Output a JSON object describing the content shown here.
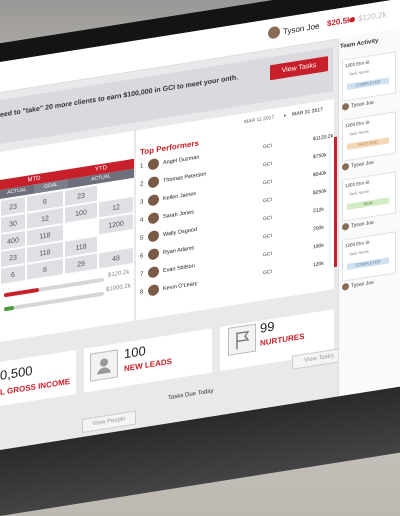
{
  "header": {
    "user_name": "Tyson Joe",
    "gci_value": "$20.5k",
    "gci_goal": "$120.2k"
  },
  "banner": {
    "text": "eed to \"take\" 20 more clients to earn $100,000 in GCI to meet your onth.",
    "button": "View Tasks"
  },
  "table": {
    "mtd": "MTD",
    "ytd": "YTD",
    "subheads": [
      "ACTUAL",
      "GOAL",
      "ACTUAL"
    ],
    "rows": [
      [
        "23",
        "6",
        "23"
      ],
      [
        "30",
        "12",
        "100",
        "12"
      ],
      [
        "400",
        "118",
        "1200"
      ],
      [
        "23",
        "118",
        "118"
      ],
      [
        "6",
        "8",
        "29",
        "48"
      ]
    ]
  },
  "progress": {
    "value1": "$120.2k",
    "value2": "$1000.2k",
    "fill1": 0.35,
    "fill2": 0.1
  },
  "performers": {
    "title": "Top Performers",
    "date_start": "MAR 11 2017",
    "date_end": "MAR 31 2017",
    "rows": [
      {
        "rank": "1",
        "name": "Angel Guzman",
        "metric": "GCI",
        "value": "$1120.2k"
      },
      {
        "rank": "2",
        "name": "Thomas Peterson",
        "metric": "GCI",
        "value": "$750k"
      },
      {
        "rank": "3",
        "name": "Kellen James",
        "metric": "GCI",
        "value": "$540k"
      },
      {
        "rank": "4",
        "name": "Sarah Jones",
        "metric": "GCI",
        "value": "$250k"
      },
      {
        "rank": "5",
        "name": "Wally Osgood",
        "metric": "GCI",
        "value": "212k"
      },
      {
        "rank": "6",
        "name": "Ryan Adams",
        "metric": "GCI",
        "value": "200k"
      },
      {
        "rank": "7",
        "name": "Evan Stillson",
        "metric": "GCI",
        "value": "190k"
      },
      {
        "rank": "8",
        "name": "Kevin O'Leary",
        "metric": "GCI",
        "value": "120k"
      }
    ]
  },
  "cards": {
    "income_num": "0,500",
    "income_label": "L GROSS INCOME",
    "leads_num": "100",
    "leads_label": "NEW LEADS",
    "nurtures_num": "99",
    "nurtures_label": "NURTURES",
    "view_people": "View People",
    "tasks_due": "Tasks Due Today",
    "view_tasks": "View Tasks"
  },
  "sidebar": {
    "title": "Team Activity",
    "tasks": [
      {
        "addr": "1203 Elm St.",
        "name": "Task Name",
        "badge": "COMPLETED",
        "badge_color": "#cfe0ee",
        "person": "Tyson Joe"
      },
      {
        "addr": "1203 Elm St.",
        "name": "Task Name",
        "badge": "PAST DUE",
        "badge_color": "#f4d7b8",
        "person": "Tyson Joe"
      },
      {
        "addr": "1203 Elm St.",
        "name": "Task Name",
        "badge": "NEW",
        "badge_color": "#d3ebc7",
        "person": "Tyson Joe"
      },
      {
        "addr": "1203 Elm St.",
        "name": "Task Name",
        "badge": "COMPLETED",
        "badge_color": "#cfe0ee",
        "person": "Tyson Joe"
      }
    ]
  }
}
